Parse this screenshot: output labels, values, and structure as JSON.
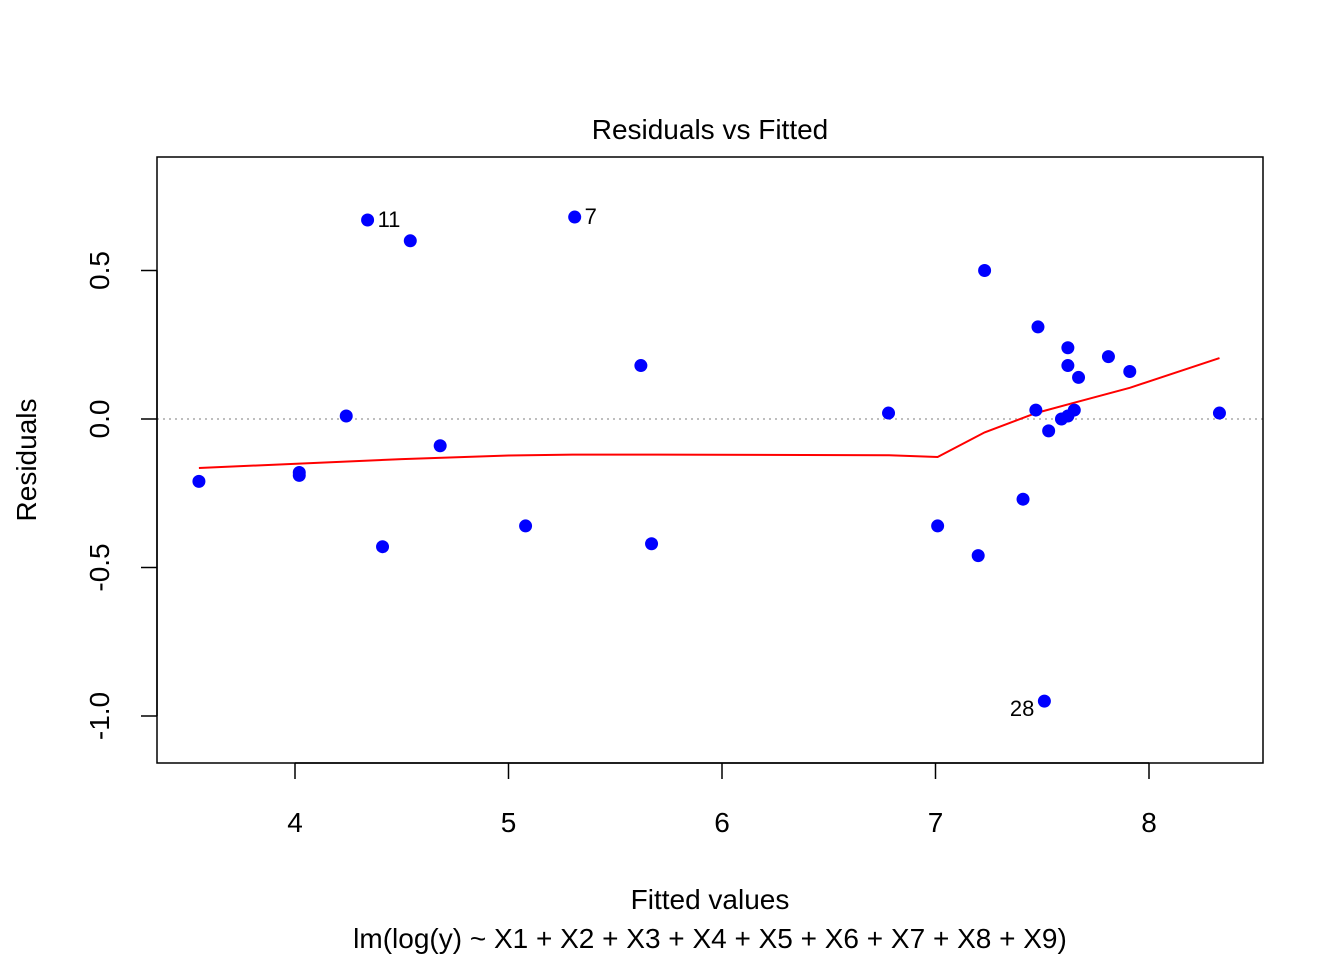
{
  "chart_data": {
    "type": "scatter",
    "title": "Residuals vs Fitted",
    "xlabel": "Fitted values",
    "ylabel": "Residuals",
    "subtitle": "lm(log(y) ~ X1 + X2 + X3 + X4 + X5 + X6 + X7 + X8 + X9)",
    "xlim": [
      3.5,
      8.35
    ],
    "ylim": [
      -1.14,
      0.87
    ],
    "x_ticks": [
      4,
      5,
      6,
      7,
      8
    ],
    "x_tick_labels": [
      "4",
      "5",
      "6",
      "7",
      "8"
    ],
    "y_ticks": [
      -1.0,
      -0.5,
      0.0,
      0.5
    ],
    "y_tick_labels": [
      "-1.0",
      "-0.5",
      "0.0",
      "0.5"
    ],
    "reference_line": {
      "y": 0,
      "style": "dotted",
      "color": "#bebebe"
    },
    "point_color": "#0000ff",
    "smooth_color": "#ff0000",
    "points": [
      {
        "x": 3.55,
        "y": -0.21
      },
      {
        "x": 4.02,
        "y": -0.18
      },
      {
        "x": 4.02,
        "y": -0.19
      },
      {
        "x": 4.24,
        "y": 0.01
      },
      {
        "x": 4.34,
        "y": 0.67,
        "label": "11"
      },
      {
        "x": 4.41,
        "y": -0.43
      },
      {
        "x": 4.54,
        "y": 0.6
      },
      {
        "x": 4.68,
        "y": -0.09
      },
      {
        "x": 5.08,
        "y": -0.36
      },
      {
        "x": 5.31,
        "y": 0.68,
        "label": "7"
      },
      {
        "x": 5.62,
        "y": 0.18
      },
      {
        "x": 5.67,
        "y": -0.42
      },
      {
        "x": 6.78,
        "y": 0.02
      },
      {
        "x": 7.01,
        "y": -0.36
      },
      {
        "x": 7.2,
        "y": -0.46
      },
      {
        "x": 7.23,
        "y": 0.5
      },
      {
        "x": 7.41,
        "y": -0.27
      },
      {
        "x": 7.47,
        "y": 0.03
      },
      {
        "x": 7.48,
        "y": 0.31
      },
      {
        "x": 7.51,
        "y": -0.95,
        "label": "28"
      },
      {
        "x": 7.53,
        "y": -0.04
      },
      {
        "x": 7.59,
        "y": 0.0
      },
      {
        "x": 7.62,
        "y": 0.24
      },
      {
        "x": 7.62,
        "y": 0.18
      },
      {
        "x": 7.62,
        "y": 0.01
      },
      {
        "x": 7.65,
        "y": 0.03
      },
      {
        "x": 7.67,
        "y": 0.14
      },
      {
        "x": 7.81,
        "y": 0.21
      },
      {
        "x": 7.91,
        "y": 0.16
      },
      {
        "x": 8.33,
        "y": 0.02
      }
    ],
    "smooth_line": [
      {
        "x": 3.55,
        "y": -0.165
      },
      {
        "x": 4.02,
        "y": -0.15
      },
      {
        "x": 4.5,
        "y": -0.135
      },
      {
        "x": 5.0,
        "y": -0.123
      },
      {
        "x": 5.3,
        "y": -0.12
      },
      {
        "x": 5.7,
        "y": -0.12
      },
      {
        "x": 6.78,
        "y": -0.122
      },
      {
        "x": 7.01,
        "y": -0.128
      },
      {
        "x": 7.23,
        "y": -0.045
      },
      {
        "x": 7.47,
        "y": 0.02
      },
      {
        "x": 7.65,
        "y": 0.055
      },
      {
        "x": 7.91,
        "y": 0.105
      },
      {
        "x": 8.33,
        "y": 0.205
      }
    ]
  }
}
